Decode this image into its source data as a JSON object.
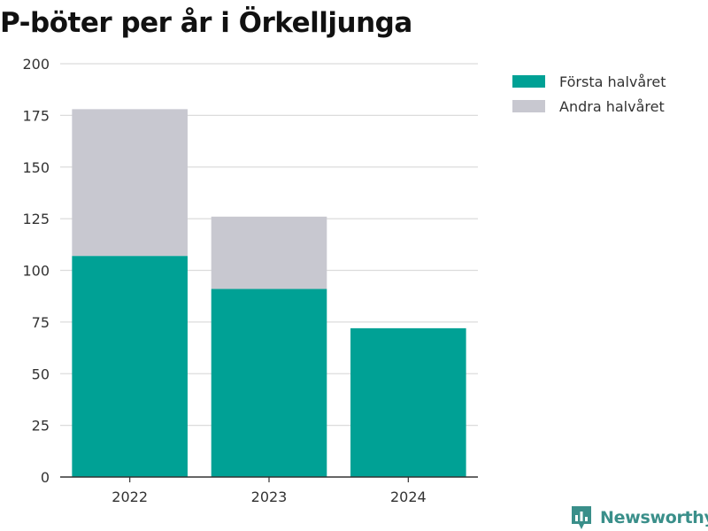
{
  "chart_data": {
    "type": "bar",
    "stacked": true,
    "title": "P-böter per år i Örkelljunga",
    "categories": [
      "2022",
      "2023",
      "2024"
    ],
    "series": [
      {
        "name": "Första halvåret",
        "color": "#00a195",
        "values": [
          107,
          91,
          72
        ]
      },
      {
        "name": "Andra halvåret",
        "color": "#c8c8d0",
        "values": [
          71,
          35,
          0
        ]
      }
    ],
    "ylim": [
      0,
      200
    ],
    "yticks": [
      "0",
      "25",
      "50",
      "75",
      "100",
      "125",
      "150",
      "175",
      "200"
    ],
    "grid": true,
    "legend_position": "top-right"
  },
  "brand": {
    "label": "Newsworthy",
    "color": "#3a8f8a",
    "icon": "bar-chart-badge-icon"
  }
}
